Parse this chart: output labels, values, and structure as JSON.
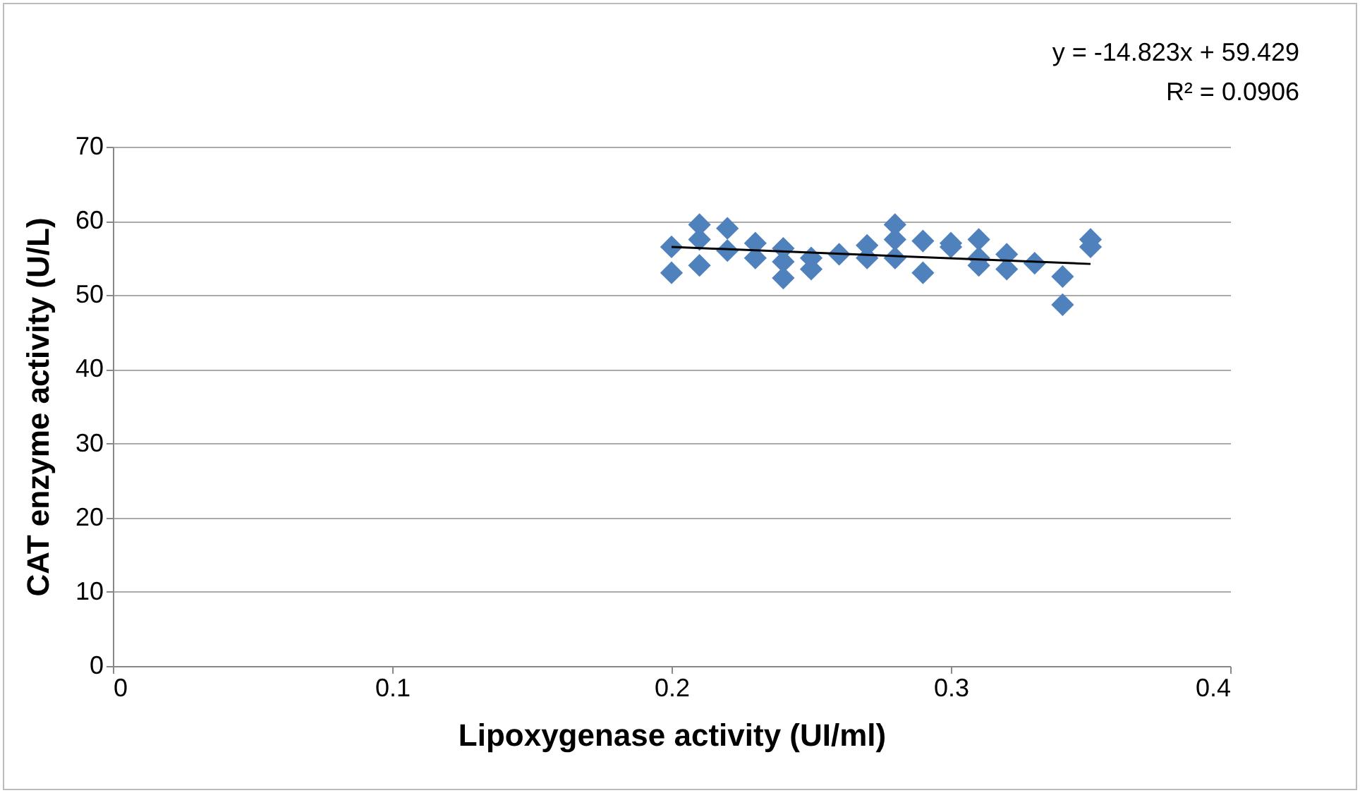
{
  "chart_data": {
    "type": "scatter",
    "xlabel": "Lipoxygenase activity (UI/ml)",
    "ylabel": "CAT enzyme activity (U/L)",
    "annotations": [
      "y = -14.823x + 59.429",
      "R² = 0.0906"
    ],
    "series": [
      {
        "color": "#4f81bd",
        "marker": "diamond",
        "x": [
          0.2,
          0.2,
          0.21,
          0.21,
          0.21,
          0.22,
          0.22,
          0.23,
          0.23,
          0.24,
          0.24,
          0.24,
          0.25,
          0.25,
          0.26,
          0.27,
          0.27,
          0.28,
          0.28,
          0.28,
          0.29,
          0.29,
          0.3,
          0.3,
          0.31,
          0.31,
          0.31,
          0.32,
          0.32,
          0.33,
          0.34,
          0.34,
          0.35,
          0.35
        ],
        "values": [
          56.5,
          53,
          59.5,
          57.5,
          54,
          59,
          56,
          57,
          55,
          56.3,
          54.5,
          52.3,
          55,
          53.5,
          55.5,
          56.7,
          55,
          59.5,
          57.5,
          55,
          57.3,
          53,
          57,
          56.5,
          57.5,
          54,
          55,
          55.5,
          53.5,
          54.3,
          52.5,
          48.7,
          57.5,
          56.5
        ]
      },
      {
        "type": "line",
        "color": "#000000",
        "marker": "none",
        "x": [
          0.2,
          0.35
        ],
        "values": [
          56.5,
          54.2
        ]
      }
    ],
    "xlim": [
      0,
      0.4
    ],
    "xticks": [
      0,
      0.1,
      0.2,
      0.3,
      0.4
    ],
    "ylim": [
      0,
      70
    ],
    "yticks": [
      0,
      10,
      20,
      30,
      40,
      50,
      60,
      70
    ],
    "grid": "y"
  }
}
